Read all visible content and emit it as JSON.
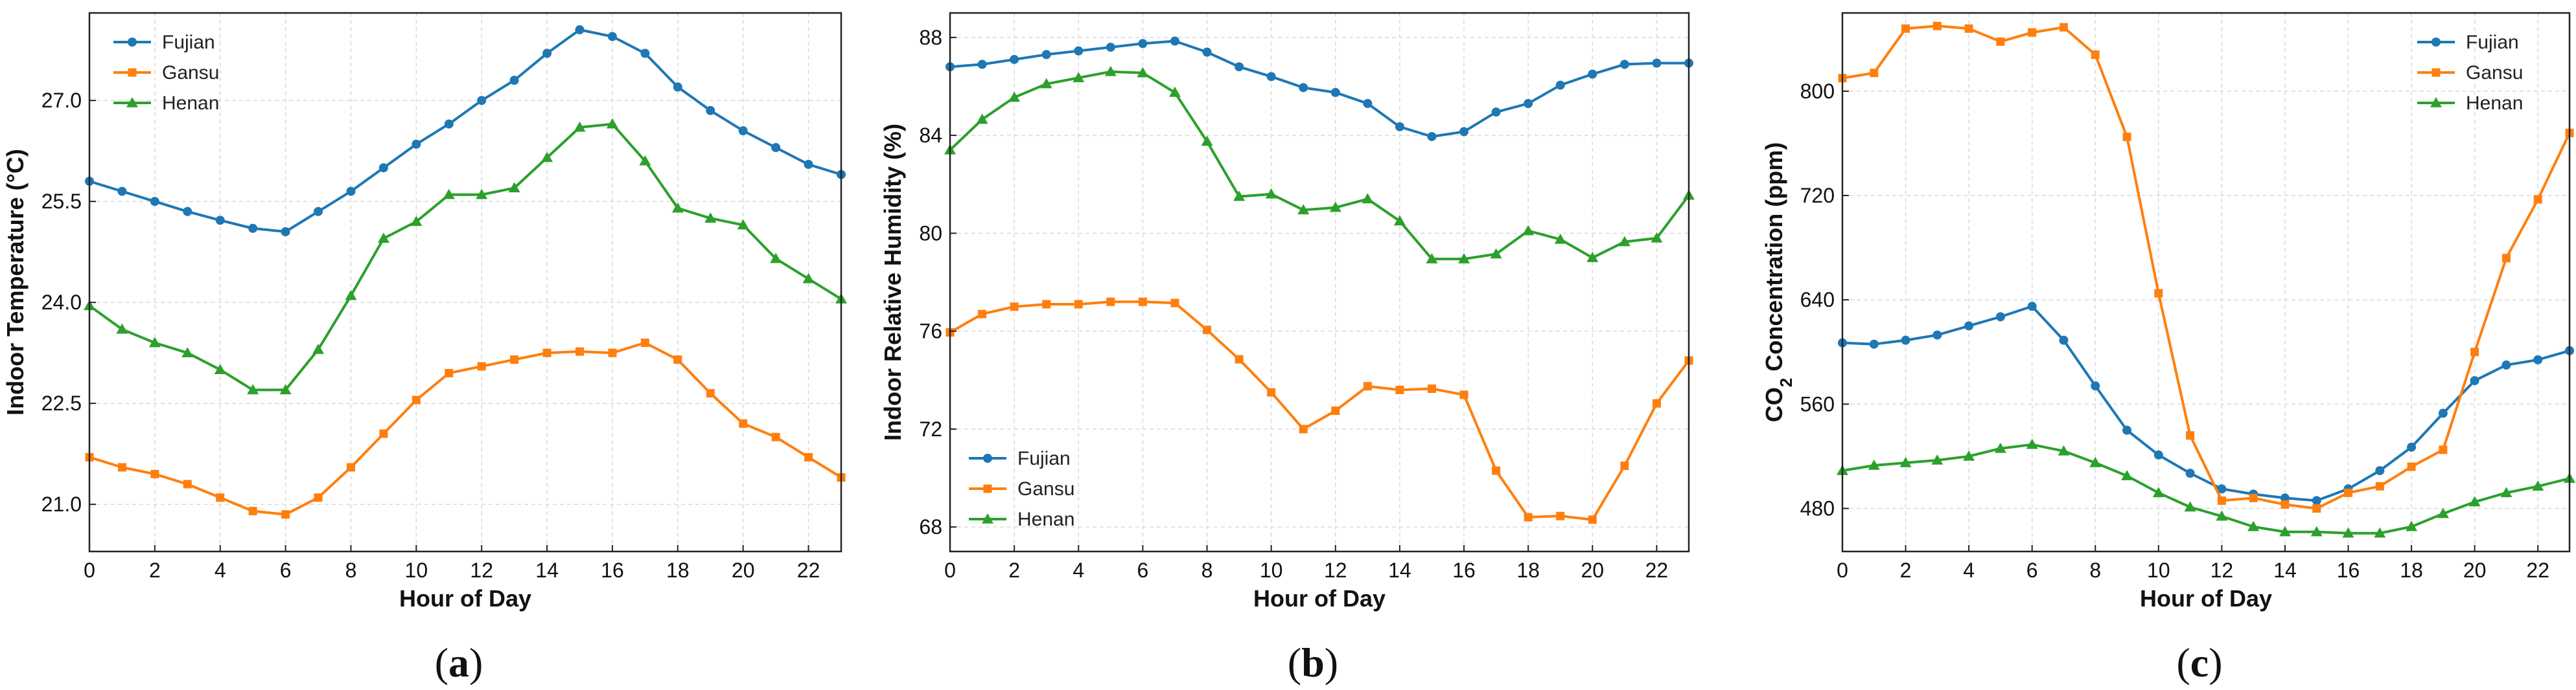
{
  "figure": {
    "colors": {
      "Fujian": "#1f77b4",
      "Gansu": "#ff7f0e",
      "Henan": "#2ca02c"
    },
    "markers": {
      "Fujian": "circle",
      "Gansu": "square",
      "Henan": "triangle"
    }
  },
  "chart_data": [
    {
      "type": "line",
      "panel": "a",
      "panel_label": "(a)",
      "panel_letter": "a",
      "xlabel": "Hour of Day",
      "ylabel": "Indoor Temperature (°C)",
      "ylabel_sub": "",
      "ylabel_after": "",
      "xlim": [
        0,
        23
      ],
      "ylim": [
        20.3,
        28.3
      ],
      "xticks": [
        0,
        2,
        4,
        6,
        8,
        10,
        12,
        14,
        16,
        18,
        20,
        22
      ],
      "yticks": [
        21.0,
        22.5,
        24.0,
        25.5,
        27.0
      ],
      "ytick_labels": [
        "21.0",
        "22.5",
        "24.0",
        "25.5",
        "27.0"
      ],
      "legend_position": "top-left",
      "grid": true,
      "x": [
        0,
        1,
        2,
        3,
        4,
        5,
        6,
        7,
        8,
        9,
        10,
        11,
        12,
        13,
        14,
        15,
        16,
        17,
        18,
        19,
        20,
        21,
        22,
        23
      ],
      "series": [
        {
          "name": "Fujian",
          "values": [
            25.8,
            25.65,
            25.5,
            25.35,
            25.22,
            25.1,
            25.05,
            25.35,
            25.65,
            26.0,
            26.35,
            26.65,
            27.0,
            27.3,
            27.7,
            28.05,
            27.95,
            27.7,
            27.2,
            26.85,
            26.55,
            26.3,
            26.05,
            25.9
          ]
        },
        {
          "name": "Gansu",
          "values": [
            21.7,
            21.55,
            21.45,
            21.3,
            21.1,
            20.9,
            20.85,
            21.1,
            21.55,
            22.05,
            22.55,
            22.95,
            23.05,
            23.15,
            23.25,
            23.27,
            23.25,
            23.4,
            23.15,
            22.65,
            22.2,
            22.0,
            21.7,
            21.4
          ]
        },
        {
          "name": "Henan",
          "values": [
            23.95,
            23.6,
            23.4,
            23.25,
            23.0,
            22.7,
            22.7,
            23.3,
            24.1,
            24.95,
            25.2,
            25.6,
            25.6,
            25.7,
            26.15,
            26.6,
            26.65,
            26.1,
            25.4,
            25.25,
            25.15,
            24.65,
            24.35,
            24.05
          ]
        }
      ]
    },
    {
      "type": "line",
      "panel": "b",
      "panel_label": "(b)",
      "panel_letter": "b",
      "xlabel": "Hour of Day",
      "ylabel": "Indoor Relative Humidity (%)",
      "ylabel_sub": "",
      "ylabel_after": "",
      "xlim": [
        0,
        23
      ],
      "ylim": [
        67,
        89
      ],
      "xticks": [
        0,
        2,
        4,
        6,
        8,
        10,
        12,
        14,
        16,
        18,
        20,
        22
      ],
      "yticks": [
        68,
        72,
        76,
        80,
        84,
        88
      ],
      "ytick_labels": [
        "68",
        "72",
        "76",
        "80",
        "84",
        "88"
      ],
      "legend_position": "lower-left",
      "grid": true,
      "x": [
        0,
        1,
        2,
        3,
        4,
        5,
        6,
        7,
        8,
        9,
        10,
        11,
        12,
        13,
        14,
        15,
        16,
        17,
        18,
        19,
        20,
        21,
        22,
        23
      ],
      "series": [
        {
          "name": "Fujian",
          "values": [
            86.8,
            86.9,
            87.1,
            87.3,
            87.45,
            87.6,
            87.75,
            87.85,
            87.4,
            86.8,
            86.4,
            85.95,
            85.75,
            85.3,
            84.35,
            83.95,
            84.15,
            84.95,
            85.3,
            86.05,
            86.5,
            86.9,
            86.95,
            86.95
          ]
        },
        {
          "name": "Gansu",
          "values": [
            75.95,
            76.7,
            77.0,
            77.1,
            77.1,
            77.2,
            77.2,
            77.15,
            76.05,
            74.85,
            73.5,
            72.0,
            72.75,
            73.75,
            73.6,
            73.65,
            73.4,
            70.3,
            68.4,
            68.45,
            68.3,
            70.5,
            73.05,
            74.8
          ]
        },
        {
          "name": "Henan",
          "values": [
            83.4,
            84.65,
            85.55,
            86.1,
            86.35,
            86.6,
            86.55,
            85.75,
            83.75,
            81.5,
            81.6,
            80.95,
            81.05,
            81.4,
            80.5,
            78.95,
            78.95,
            79.15,
            80.1,
            79.75,
            79.0,
            79.65,
            79.8,
            81.55
          ]
        }
      ]
    },
    {
      "type": "line",
      "panel": "c",
      "panel_label": "(c)",
      "panel_letter": "c",
      "xlabel": "Hour of Day",
      "ylabel": "CO",
      "ylabel_sub": "2",
      "ylabel_after": " Concentration (ppm)",
      "xlim": [
        0,
        23
      ],
      "ylim": [
        447,
        860
      ],
      "xticks": [
        0,
        2,
        4,
        6,
        8,
        10,
        12,
        14,
        16,
        18,
        20,
        22
      ],
      "yticks": [
        480,
        560,
        640,
        720,
        800
      ],
      "ytick_labels": [
        "480",
        "560",
        "640",
        "720",
        "800"
      ],
      "legend_position": "top-right",
      "grid": true,
      "x": [
        0,
        1,
        2,
        3,
        4,
        5,
        6,
        7,
        8,
        9,
        10,
        11,
        12,
        13,
        14,
        15,
        16,
        17,
        18,
        19,
        20,
        21,
        22,
        23
      ],
      "series": [
        {
          "name": "Fujian",
          "values": [
            607,
            606,
            609,
            613,
            620,
            627,
            635,
            609,
            574,
            540,
            521,
            507,
            495,
            491,
            488,
            486,
            495,
            509,
            527,
            553,
            578,
            590,
            594,
            601
          ]
        },
        {
          "name": "Gansu",
          "values": [
            810,
            814,
            848,
            850,
            848,
            838,
            845,
            849,
            828,
            765,
            645,
            536,
            486,
            488,
            483,
            480,
            492,
            497,
            512,
            525,
            600,
            672,
            717,
            768
          ]
        },
        {
          "name": "Henan",
          "values": [
            509,
            513,
            515,
            517,
            520,
            526,
            529,
            524,
            515,
            505,
            492,
            481,
            474,
            466,
            462,
            462,
            461,
            461,
            466,
            476,
            485,
            492,
            497,
            503
          ]
        }
      ]
    }
  ]
}
